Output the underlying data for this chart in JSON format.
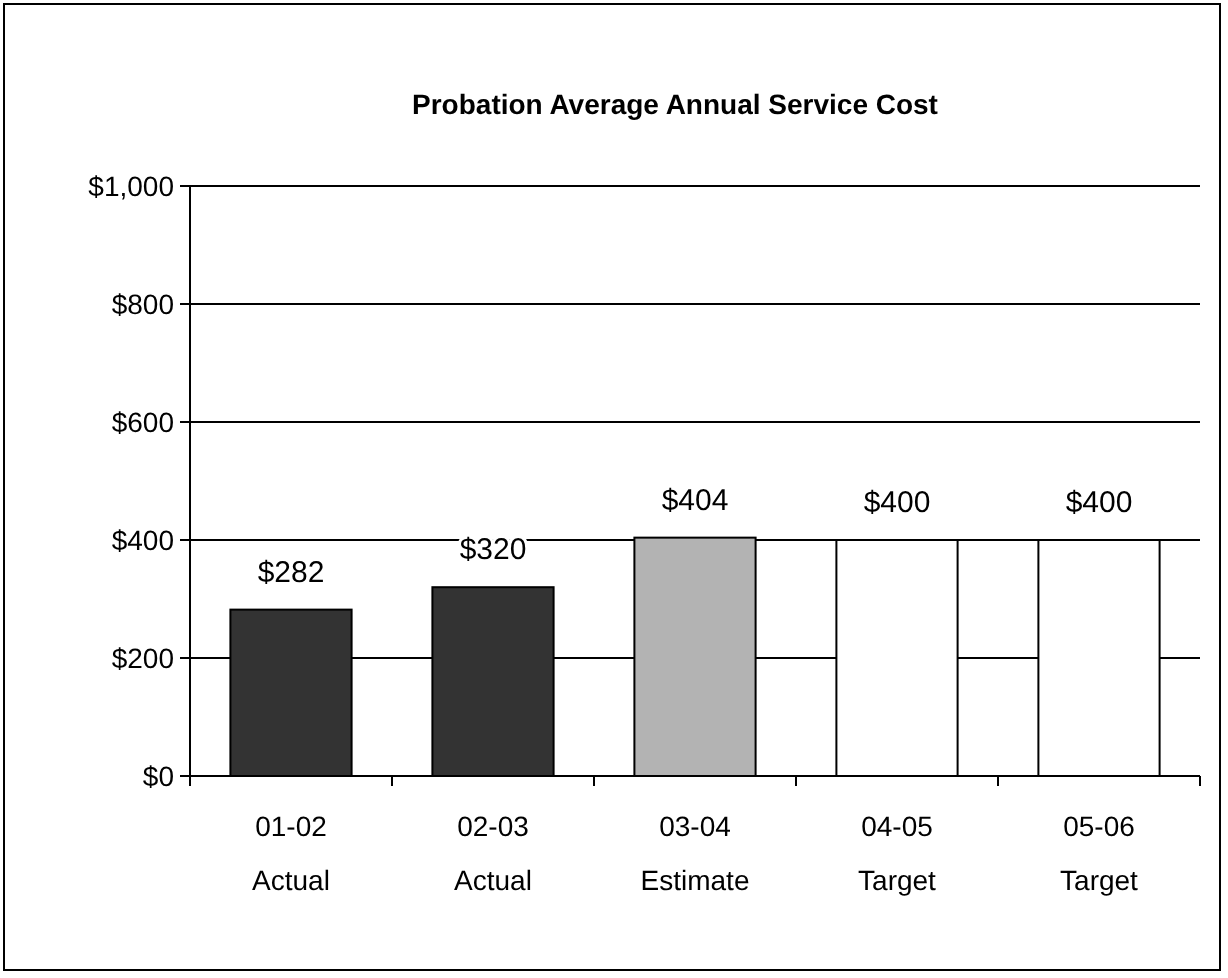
{
  "chart_data": {
    "type": "bar",
    "title": "Probation Average Annual Service Cost",
    "categories": [
      "01-02\nActual",
      "02-03\nActual",
      "03-04\nEstimate",
      "04-05\nTarget",
      "05-06\nTarget"
    ],
    "values": [
      282,
      320,
      404,
      400,
      400
    ],
    "colors": [
      "#333333",
      "#333333",
      "#b3b3b3",
      "#ffffff",
      "#ffffff"
    ],
    "value_labels": [
      "$282",
      "$320",
      "$404",
      "$400",
      "$400"
    ],
    "ylim": [
      0,
      1000
    ],
    "yticks": [
      {
        "value": 0,
        "label": "$0"
      },
      {
        "value": 200,
        "label": "$200"
      },
      {
        "value": 400,
        "label": "$400"
      },
      {
        "value": 600,
        "label": "$600"
      },
      {
        "value": 800,
        "label": "$800"
      },
      {
        "value": 1000,
        "label": "$1,000"
      }
    ],
    "grid": "y"
  }
}
